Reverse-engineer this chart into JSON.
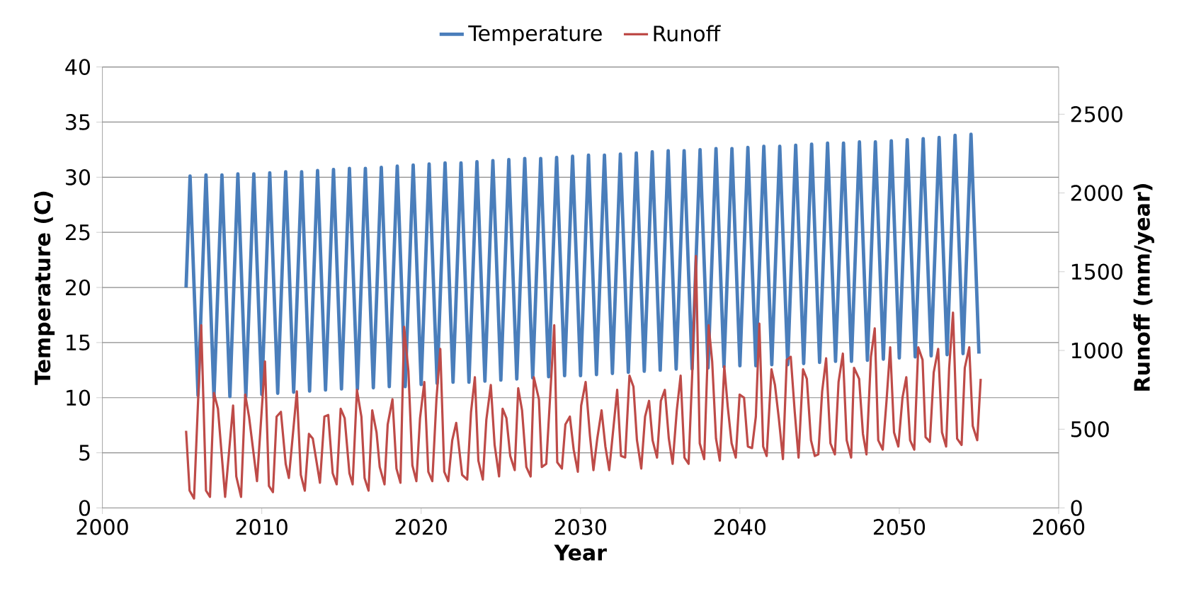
{
  "chart_data": {
    "type": "line",
    "xlabel": "Year",
    "ylabel": "Temperature (C)",
    "y2label": "Runoff (mm/year)",
    "xlim": [
      2000,
      2060
    ],
    "xticks": [
      2000,
      2010,
      2020,
      2030,
      2040,
      2050,
      2060
    ],
    "ylim": [
      0,
      40
    ],
    "yticks": [
      0,
      5,
      10,
      15,
      20,
      25,
      30,
      35,
      40
    ],
    "y2lim": [
      0,
      2800
    ],
    "y2ticks": [
      0,
      500,
      1000,
      1500,
      2000,
      2500
    ],
    "grid": "y",
    "legend": "top",
    "series": [
      {
        "name": "Temperature",
        "color": "#4a7ebb",
        "x": [
          2005.25,
          2005.5,
          2006,
          2006.5,
          2007,
          2007.5,
          2008,
          2008.5,
          2009,
          2009.5,
          2010,
          2010.5,
          2011,
          2011.5,
          2012,
          2012.5,
          2013,
          2013.5,
          2014,
          2014.5,
          2015,
          2015.5,
          2016,
          2016.5,
          2017,
          2017.5,
          2018,
          2018.5,
          2019,
          2019.5,
          2020,
          2020.5,
          2021,
          2021.5,
          2022,
          2022.5,
          2023,
          2023.5,
          2024,
          2024.5,
          2025,
          2025.5,
          2026,
          2026.5,
          2027,
          2027.5,
          2028,
          2028.5,
          2029,
          2029.5,
          2030,
          2030.5,
          2031,
          2031.5,
          2032,
          2032.5,
          2033,
          2033.5,
          2034,
          2034.5,
          2035,
          2035.5,
          2036,
          2036.5,
          2037,
          2037.5,
          2038,
          2038.5,
          2039,
          2039.5,
          2040,
          2040.5,
          2041,
          2041.5,
          2042,
          2042.5,
          2043,
          2043.5,
          2044,
          2044.5,
          2045,
          2045.5,
          2046,
          2046.5,
          2047,
          2047.5,
          2048,
          2048.5,
          2049,
          2049.5,
          2050,
          2050.5,
          2051,
          2051.5,
          2052,
          2052.5,
          2053,
          2053.5,
          2054,
          2054.5,
          2055
        ],
        "values": [
          20,
          30.1,
          10.2,
          30.2,
          10.0,
          30.2,
          10.1,
          30.3,
          10.1,
          30.3,
          10.3,
          30.4,
          10.4,
          30.5,
          10.5,
          30.5,
          10.6,
          30.6,
          10.7,
          30.7,
          10.8,
          30.8,
          10.8,
          30.8,
          10.9,
          30.9,
          11.0,
          31.0,
          11.0,
          31.1,
          11.2,
          31.2,
          11.3,
          31.3,
          11.4,
          31.3,
          11.4,
          31.4,
          11.5,
          31.5,
          11.6,
          31.6,
          11.7,
          31.7,
          11.8,
          31.7,
          11.9,
          31.8,
          12.0,
          31.9,
          12.0,
          32.0,
          12.1,
          32.0,
          12.2,
          32.1,
          12.3,
          32.2,
          12.4,
          32.3,
          12.5,
          32.4,
          12.6,
          32.4,
          12.6,
          32.5,
          12.7,
          32.6,
          12.8,
          32.6,
          12.9,
          32.7,
          12.9,
          32.8,
          13.0,
          32.8,
          13.0,
          32.9,
          13.1,
          33.0,
          13.2,
          33.1,
          13.3,
          33.1,
          13.3,
          33.2,
          13.4,
          33.2,
          13.5,
          33.3,
          13.6,
          33.4,
          13.7,
          33.5,
          13.8,
          33.6,
          13.9,
          33.8,
          14.0,
          33.9,
          14.0
        ]
      },
      {
        "name": "Runoff",
        "color": "#be4b48",
        "axis": "y2",
        "x": [
          2005.25,
          2005.47,
          2005.75,
          2006.2,
          2006.5,
          2006.75,
          2007.0,
          2007.25,
          2007.7,
          2008.2,
          2008.4,
          2008.7,
          2008.96,
          2009.2,
          2009.7,
          2010.2,
          2010.45,
          2010.7,
          2010.93,
          2011.2,
          2011.5,
          2011.7,
          2012.2,
          2012.45,
          2012.7,
          2012.96,
          2013.2,
          2013.65,
          2013.93,
          2014.17,
          2014.45,
          2014.7,
          2014.95,
          2015.2,
          2015.5,
          2015.7,
          2015.97,
          2016.25,
          2016.45,
          2016.7,
          2016.93,
          2017.2,
          2017.4,
          2017.7,
          2017.9,
          2018.2,
          2018.45,
          2018.7,
          2018.93,
          2019.2,
          2019.45,
          2019.7,
          2019.93,
          2020.2,
          2020.45,
          2020.7,
          2020.96,
          2021.2,
          2021.45,
          2021.7,
          2021.95,
          2022.2,
          2022.57,
          2022.89,
          2023.13,
          2023.37,
          2023.59,
          2023.87,
          2024.09,
          2024.37,
          2024.61,
          2024.89,
          2025.11,
          2025.35,
          2025.59,
          2025.87,
          2026.09,
          2026.33,
          2026.6,
          2026.87,
          2027.07,
          2027.39,
          2027.57,
          2027.85,
          2028.35,
          2028.54,
          2028.83,
          2029.05,
          2029.33,
          2029.57,
          2029.83,
          2030.04,
          2030.32,
          2030.59,
          2030.81,
          2031.05,
          2031.32,
          2031.56,
          2031.8,
          2032.3,
          2032.54,
          2032.8,
          2033.07,
          2033.32,
          2033.54,
          2033.81,
          2034.05,
          2034.3,
          2034.52,
          2034.8,
          2035.04,
          2035.29,
          2035.54,
          2035.78,
          2036.04,
          2036.28,
          2036.52,
          2036.78,
          2037.02,
          2037.24,
          2037.48,
          2037.76,
          2038.04,
          2038.26,
          2038.5,
          2038.74,
          2039.02,
          2039.24,
          2039.48,
          2039.74,
          2039.98,
          2040.26,
          2040.5,
          2040.76,
          2041.0,
          2041.22,
          2041.46,
          2041.68,
          2041.98,
          2042.2,
          2042.44,
          2042.7,
          2042.94,
          2043.19,
          2043.44,
          2043.68,
          2043.96,
          2044.2,
          2044.46,
          2044.7,
          2044.92,
          2045.16,
          2045.41,
          2045.68,
          2045.96,
          2046.19,
          2046.46,
          2046.7,
          2046.98,
          2047.16,
          2047.48,
          2047.72,
          2047.94,
          2048.22,
          2048.46,
          2048.68,
          2048.96,
          2049.2,
          2049.43,
          2049.67,
          2049.94,
          2050.2,
          2050.44,
          2050.68,
          2050.94,
          2051.19,
          2051.46,
          2051.65,
          2051.92,
          2052.16,
          2052.44,
          2052.68,
          2052.94,
          2053.13,
          2053.37,
          2053.63,
          2053.91,
          2054.11,
          2054.39,
          2054.61,
          2054.89,
          2055.11
        ],
        "values": [
          490,
          110,
          60,
          1160,
          110,
          70,
          730,
          630,
          70,
          650,
          200,
          70,
          720,
          580,
          170,
          930,
          140,
          100,
          580,
          610,
          280,
          190,
          740,
          210,
          110,
          470,
          440,
          160,
          580,
          590,
          220,
          150,
          630,
          570,
          220,
          150,
          750,
          580,
          190,
          110,
          620,
          480,
          260,
          150,
          530,
          690,
          250,
          160,
          1150,
          870,
          270,
          170,
          570,
          800,
          230,
          170,
          690,
          1010,
          230,
          170,
          430,
          540,
          210,
          180,
          610,
          830,
          300,
          180,
          560,
          780,
          400,
          200,
          630,
          570,
          330,
          240,
          760,
          620,
          260,
          200,
          830,
          690,
          260,
          280,
          1160,
          290,
          250,
          530,
          580,
          370,
          230,
          650,
          800,
          460,
          240,
          440,
          620,
          390,
          240,
          750,
          330,
          320,
          840,
          770,
          430,
          250,
          580,
          680,
          430,
          320,
          680,
          750,
          440,
          280,
          620,
          840,
          320,
          280,
          880,
          1600,
          410,
          310,
          1160,
          930,
          440,
          300,
          900,
          640,
          410,
          320,
          720,
          700,
          390,
          380,
          580,
          1170,
          390,
          330,
          880,
          780,
          570,
          310,
          940,
          960,
          610,
          320,
          880,
          820,
          430,
          330,
          340,
          740,
          950,
          410,
          340,
          800,
          980,
          430,
          320,
          890,
          820,
          470,
          340,
          960,
          1140,
          430,
          370,
          680,
          1020,
          480,
          390,
          700,
          830,
          430,
          370,
          1020,
          940,
          450,
          420,
          860,
          1010,
          480,
          390,
          890,
          1240,
          440,
          400,
          890,
          1020,
          520,
          430,
          820
        ]
      }
    ]
  }
}
